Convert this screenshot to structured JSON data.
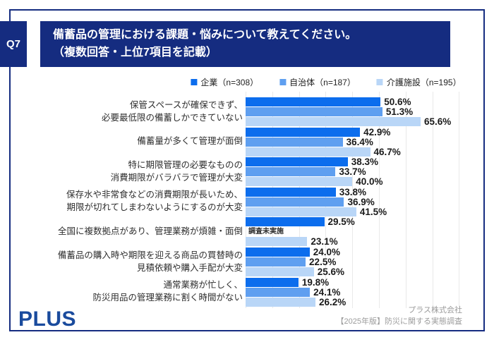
{
  "header": {
    "q_label": "Q7",
    "title_line1": "備蓄品の管理における課題・悩みについて教えてください。",
    "title_line2": "（複数回答・上位7項目を記載）"
  },
  "legend": {
    "items": [
      {
        "label": "企業（n=308）",
        "color": "#0c6ded"
      },
      {
        "label": "自治体（n=187）",
        "color": "#5f9ff0"
      },
      {
        "label": "介護施設（n=195）",
        "color": "#b9d6f7"
      }
    ]
  },
  "chart_data": {
    "type": "bar",
    "orientation": "horizontal",
    "unit": "%",
    "xlim": [
      0,
      90
    ],
    "gridline_step": 10,
    "grid": true,
    "legend_position": "top",
    "title": "備蓄品の管理における課題・悩みについて教えてください。（複数回答・上位7項目を記載）",
    "categories": [
      [
        "保管スペースが確保できず、",
        "必要最低限の備蓄しかできていない"
      ],
      [
        "備蓄量が多くて管理が面倒"
      ],
      [
        "特に期限管理の必要なものの",
        "消費期限がバラバラで管理が大変"
      ],
      [
        "保存水や非常食などの消費期限が長いため、",
        "期限が切れてしまわないようにするのが大変"
      ],
      [
        "全国に複数拠点があり、管理業務が煩雑・面倒"
      ],
      [
        "備蓄品の購入時や期限を迎える商品の買替時の",
        "見積依頼や購入手配が大変"
      ],
      [
        "通常業務が忙しく、",
        "防災用品の管理業務に割く時間がない"
      ]
    ],
    "series": [
      {
        "name": "企業（n=308）",
        "color": "#0c6ded",
        "values": [
          50.6,
          42.9,
          38.3,
          33.8,
          29.5,
          24.0,
          19.8
        ],
        "labels": [
          "50.6%",
          "42.9%",
          "38.3%",
          "33.8%",
          "29.5%",
          "24.0%",
          "19.8%"
        ]
      },
      {
        "name": "自治体（n=187）",
        "color": "#5f9ff0",
        "values": [
          51.3,
          36.4,
          33.7,
          36.9,
          null,
          22.5,
          24.1
        ],
        "labels": [
          "51.3%",
          "36.4%",
          "33.7%",
          "36.9%",
          "調査未実施",
          "22.5%",
          "24.1%"
        ]
      },
      {
        "name": "介護施設（n=195）",
        "color": "#b9d6f7",
        "values": [
          65.6,
          46.7,
          40.0,
          41.5,
          23.1,
          25.6,
          26.2
        ],
        "labels": [
          "65.6%",
          "46.7%",
          "40.0%",
          "41.5%",
          "23.1%",
          "25.6%",
          "26.2%"
        ]
      }
    ],
    "missing_note": "調査未実施"
  },
  "footer": {
    "logo": "PLUS",
    "source_line1": "プラス株式会社",
    "source_line2": "【2025年版】防災に関する実態調査"
  }
}
